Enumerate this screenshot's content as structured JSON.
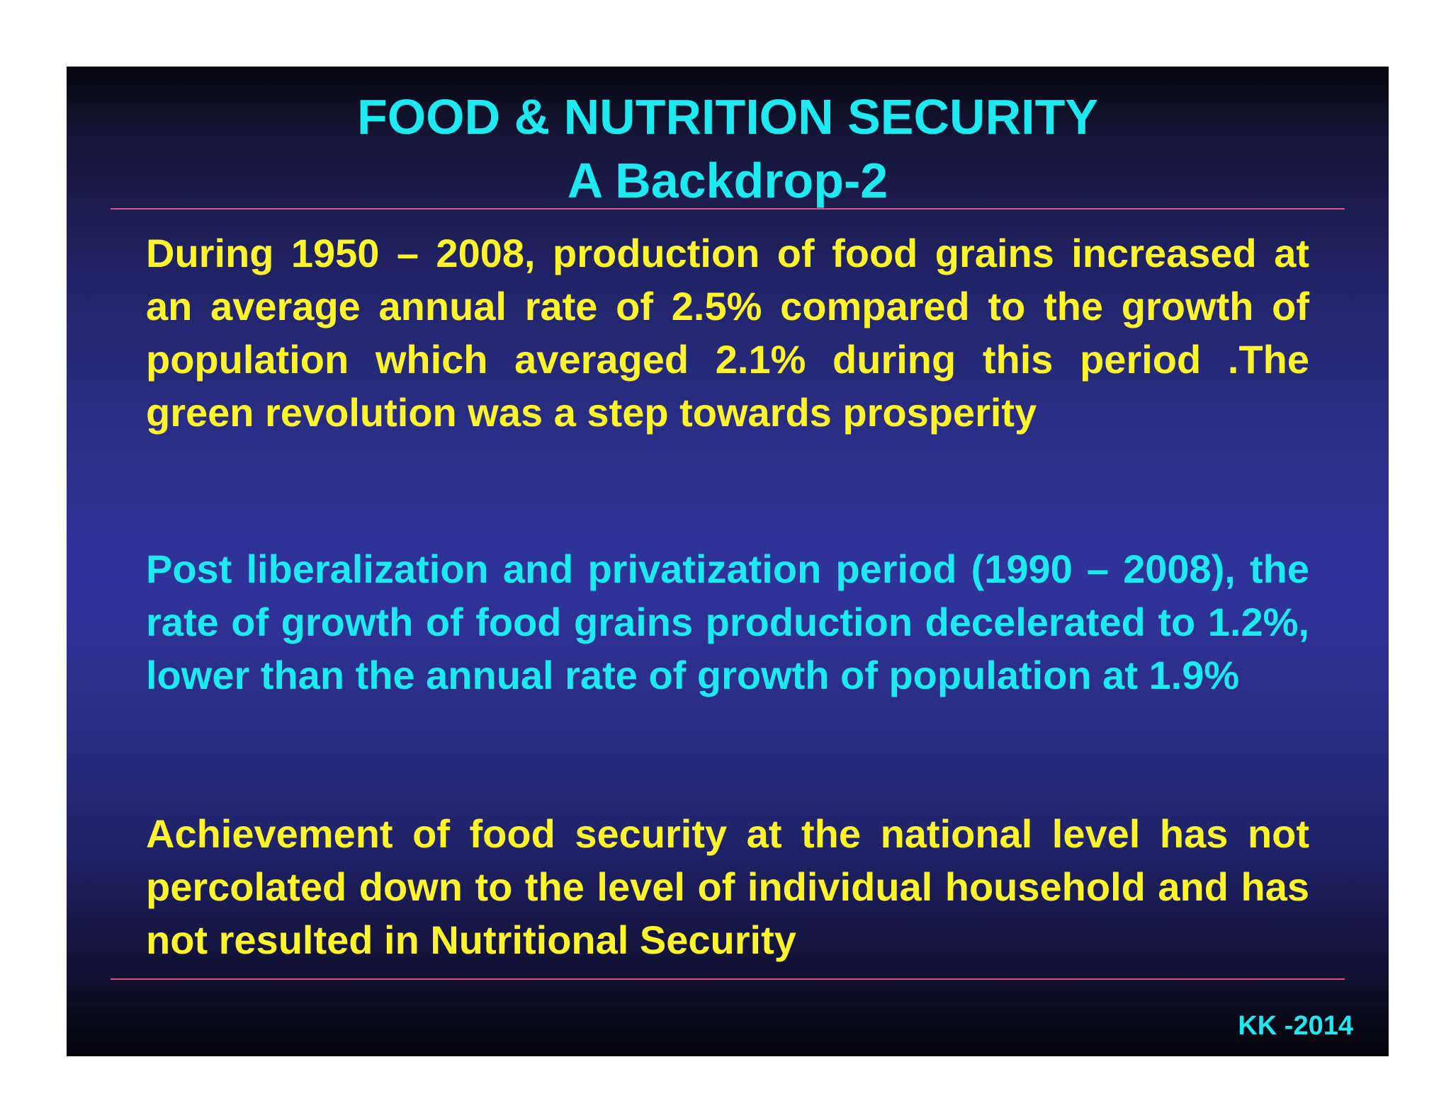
{
  "title": {
    "line1": "FOOD & NUTRITION SECURITY",
    "line2": "A Backdrop-2"
  },
  "paragraphs": [
    "During 1950 – 2008, production of food grains increased at an average annual rate of 2.5% compared to the growth of population which averaged 2.1% during this period .The green revolution was a step towards prosperity",
    "Post liberalization and privatization period (1990 – 2008), the rate of growth of food grains production decelerated to 1.2%, lower than the annual rate of growth of population at 1.9%",
    "Achievement of food security at the national level has not percolated down to the level of individual household and has not resulted in Nutritional Security"
  ],
  "footer": "KK -2014",
  "colors": {
    "title": "#1de9f0",
    "body_primary": "#fdf52a",
    "body_secondary": "#1de9f0",
    "rule": "#e0508a",
    "background": "#2c2f8a"
  }
}
